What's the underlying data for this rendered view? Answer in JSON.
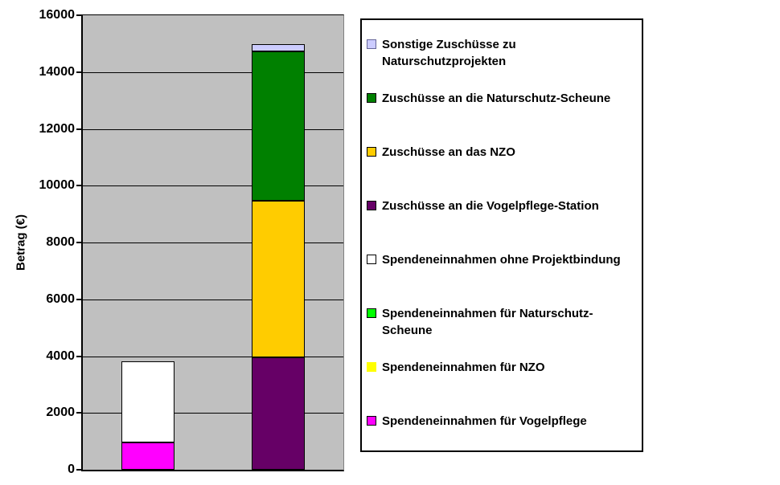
{
  "page": {
    "background": "#FFFFFF"
  },
  "chart_data": {
    "type": "bar",
    "stacked": true,
    "title": "",
    "xlabel": "",
    "ylabel": "Betrag (€)",
    "ylim": [
      0,
      16000
    ],
    "yticks": [
      0,
      2000,
      4000,
      6000,
      8000,
      10000,
      12000,
      14000,
      16000
    ],
    "categories": [
      "",
      ""
    ],
    "grid": true,
    "legend_position": "right",
    "plot_bg": "#C0C0C0",
    "series": [
      {
        "name": "Spendeneinnahmen für Vogelpflege",
        "color": "#FF00FF",
        "values": [
          950,
          0
        ]
      },
      {
        "name": "Spendeneinnahmen für NZO",
        "color": "#FFFF00",
        "values": [
          0,
          0
        ]
      },
      {
        "name": "Spendeneinnahmen für Naturschutz-Scheune",
        "color": "#00FF00",
        "values": [
          0,
          0
        ]
      },
      {
        "name": "Spendeneinnahmen ohne Projektbindung",
        "color": "#FFFFFF",
        "values": [
          2850,
          0
        ]
      },
      {
        "name": "Zuschüsse an die Vogelpflege-Station",
        "color": "#660066",
        "values": [
          0,
          3950
        ]
      },
      {
        "name": "Zuschüsse an das NZO",
        "color": "#FFCC00",
        "values": [
          0,
          5500
        ]
      },
      {
        "name": "Zuschüsse an die Naturschutz-Scheune",
        "color": "#008000",
        "values": [
          0,
          5250
        ]
      },
      {
        "name": "Sonstige Zuschüsse zu Naturschutzprojekten",
        "color": "#CCCCFF",
        "values": [
          0,
          250
        ]
      }
    ]
  },
  "legend": {
    "items": [
      {
        "label": "Sonstige Zuschüsse zu Naturschutzprojekten",
        "color": "#CCCCFF",
        "border": "#666699"
      },
      {
        "label": "Zuschüsse an die Naturschutz-Scheune",
        "color": "#008000",
        "border": "#000000"
      },
      {
        "label": "Zuschüsse an das NZO",
        "color": "#FFCC00",
        "border": "#000000"
      },
      {
        "label": "Zuschüsse an die Vogelpflege-Station",
        "color": "#660066",
        "border": "#000000"
      },
      {
        "label": "Spendeneinnahmen ohne Projektbindung",
        "color": "#FFFFFF",
        "border": "#000000"
      },
      {
        "label": "Spendeneinnahmen für Naturschutz-Scheune",
        "color": "#00FF00",
        "border": "#000000"
      },
      {
        "label": "Spendeneinnahmen für NZO",
        "color": "#FFFF00",
        "border": "#FFFF00"
      },
      {
        "label": "Spendeneinnahmen für Vogelpflege",
        "color": "#FF00FF",
        "border": "#000000"
      }
    ]
  }
}
